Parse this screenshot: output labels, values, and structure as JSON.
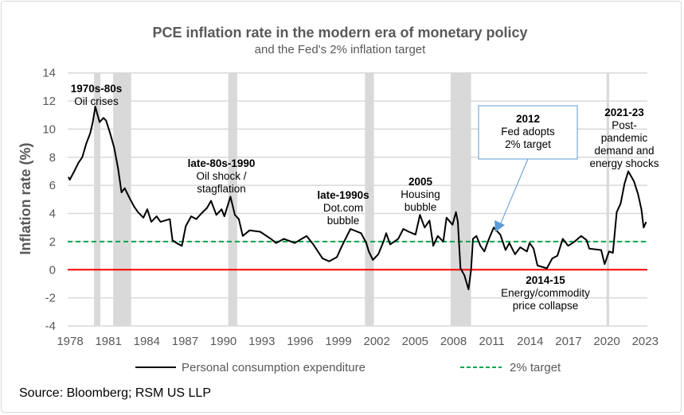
{
  "chart_data": {
    "type": "line",
    "title": "PCE inflation rate in the modern era of monetary policy",
    "subtitle": "and the Fed's 2% inflation target",
    "ylabel": "Inflation rate (%)",
    "xlabel": "",
    "ylim": [
      -4,
      14
    ],
    "xlim": [
      1978,
      2023.5
    ],
    "yticks": [
      "-4",
      "-2",
      "0",
      "2",
      "4",
      "6",
      "8",
      "10",
      "12",
      "14"
    ],
    "xticks": [
      "1978",
      "1981",
      "1984",
      "1987",
      "1990",
      "1993",
      "1996",
      "1999",
      "2002",
      "2005",
      "2008",
      "2011",
      "2014",
      "2017",
      "2020",
      "2023"
    ],
    "grid": true,
    "legend_position": "bottom",
    "colors": {
      "pce": "#000000",
      "target": "#00a650",
      "zero": "#ff0000",
      "recession": "#d9d9d9",
      "callout": "#5b9bd5"
    },
    "series": [
      {
        "name": "Personal consumption expenditure",
        "style": "solid",
        "x": [
          1978.0,
          1978.1,
          1978.45,
          1978.77,
          1979.08,
          1979.4,
          1979.7,
          1979.9,
          1980.1,
          1980.43,
          1980.74,
          1980.95,
          1981.26,
          1981.57,
          1981.88,
          1982.15,
          1982.4,
          1982.72,
          1983.13,
          1983.44,
          1983.86,
          1984.17,
          1984.48,
          1984.9,
          1985.2,
          1985.93,
          1986.14,
          1986.45,
          1986.87,
          1987.18,
          1987.6,
          1988.0,
          1988.4,
          1988.84,
          1989.15,
          1989.57,
          1989.98,
          1990.2,
          1990.67,
          1991.02,
          1991.33,
          1991.64,
          1992.16,
          1993.0,
          1993.83,
          1994.24,
          1994.86,
          1995.7,
          1996.63,
          1997.15,
          1997.88,
          1998.4,
          1999.0,
          1999.4,
          2000.06,
          2000.9,
          2001.3,
          2001.5,
          2001.82,
          2002.24,
          2002.65,
          2002.86,
          2003.17,
          2003.8,
          2004.2,
          2004.63,
          2005.15,
          2005.5,
          2005.87,
          2006.25,
          2006.54,
          2006.9,
          2007.33,
          2007.58,
          2008.05,
          2008.32,
          2008.47,
          2008.67,
          2008.98,
          2009.3,
          2009.5,
          2009.65,
          2009.92,
          2010.23,
          2010.54,
          2010.86,
          2011.27,
          2011.79,
          2012.2,
          2012.5,
          2012.94,
          2013.35,
          2013.87,
          2014.08,
          2014.39,
          2014.7,
          2015.43,
          2015.85,
          2016.26,
          2016.67,
          2017.1,
          2017.6,
          2018.12,
          2018.54,
          2018.75,
          2019.68,
          2019.95,
          2020.3,
          2020.6,
          2020.9,
          2021.2,
          2021.5,
          2021.8,
          2022.24,
          2022.56,
          2022.83,
          2023.0,
          2023.2
        ],
        "y": [
          6.6,
          6.4,
          7.0,
          7.6,
          8.0,
          9.0,
          9.7,
          10.5,
          11.6,
          10.5,
          10.8,
          10.6,
          9.7,
          8.7,
          7.2,
          5.5,
          5.8,
          5.2,
          4.5,
          4.1,
          3.7,
          4.3,
          3.4,
          3.8,
          3.4,
          3.6,
          2.1,
          1.9,
          1.7,
          3.1,
          3.8,
          3.6,
          4.0,
          4.4,
          4.9,
          3.9,
          4.3,
          3.8,
          5.2,
          3.9,
          3.6,
          2.4,
          2.8,
          2.7,
          2.2,
          1.9,
          2.2,
          1.9,
          2.4,
          1.8,
          0.8,
          0.6,
          0.9,
          1.7,
          2.9,
          2.6,
          1.9,
          1.3,
          0.7,
          1.1,
          2.0,
          2.6,
          1.8,
          2.2,
          2.9,
          2.7,
          2.5,
          3.9,
          3.0,
          3.5,
          1.7,
          2.4,
          2.0,
          3.7,
          3.2,
          4.1,
          3.4,
          0.1,
          -0.4,
          -1.4,
          0.0,
          2.2,
          2.4,
          1.7,
          1.3,
          2.1,
          3.0,
          2.5,
          1.4,
          1.9,
          1.1,
          1.6,
          1.3,
          1.9,
          1.5,
          0.3,
          0.1,
          0.8,
          1.0,
          2.2,
          1.7,
          2.0,
          2.4,
          2.1,
          1.5,
          1.4,
          0.4,
          1.3,
          1.2,
          4.1,
          4.7,
          6.1,
          7.0,
          6.3,
          5.4,
          4.3,
          3.0,
          3.4
        ]
      },
      {
        "name": "2% target",
        "style": "dashed",
        "value": 2
      },
      {
        "name": "",
        "style": "solid",
        "value": 0
      }
    ],
    "recessions": [
      [
        1980.0,
        1980.5
      ],
      [
        1981.5,
        1982.9
      ],
      [
        1990.5,
        1991.2
      ],
      [
        2001.2,
        2001.9
      ],
      [
        2007.9,
        2009.5
      ],
      [
        2020.1,
        2020.3
      ]
    ],
    "annotations": [
      {
        "heading": "1970s-80s",
        "lines": [
          "Oil crises"
        ]
      },
      {
        "heading": "late-80s-1990",
        "lines": [
          "Oil shock /",
          "stagflation"
        ]
      },
      {
        "heading": "late-1990s",
        "lines": [
          "Dot.com",
          "bubble"
        ]
      },
      {
        "heading": "2005",
        "lines": [
          "Housing",
          "bubble"
        ]
      },
      {
        "heading": "2012",
        "lines": [
          "Fed adopts",
          "2% target"
        ]
      },
      {
        "heading": "2021-23",
        "lines": [
          "Post-",
          "pandemic",
          "demand and",
          "energy shocks"
        ]
      },
      {
        "heading": "2014-15",
        "lines": [
          "Energy/commodity",
          "price collapse"
        ]
      }
    ]
  },
  "source": "Source: Bloomberg; RSM US LLP"
}
